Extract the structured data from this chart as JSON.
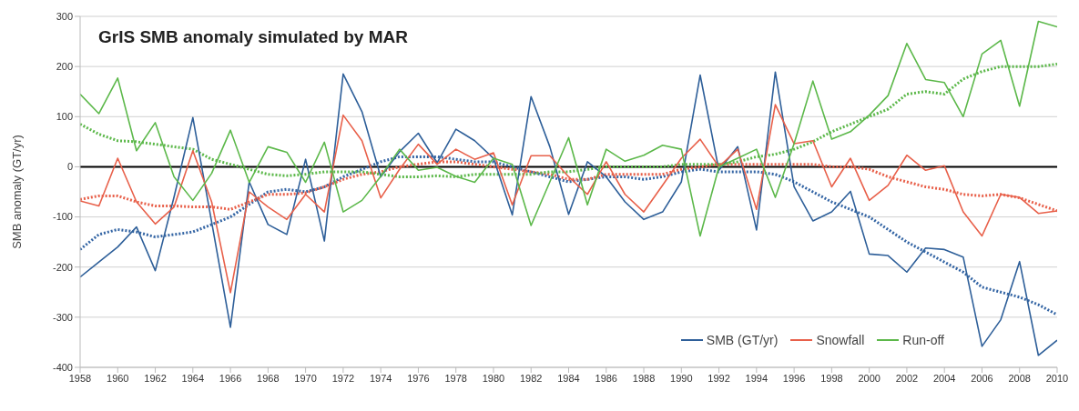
{
  "chart_data": {
    "type": "line",
    "title": "GrIS SMB anomaly simulated by MAR",
    "ylabel": "SMB anomaly (GT/yr)",
    "x": [
      1958,
      1959,
      1960,
      1961,
      1962,
      1963,
      1964,
      1965,
      1966,
      1967,
      1968,
      1969,
      1970,
      1971,
      1972,
      1973,
      1974,
      1975,
      1976,
      1977,
      1978,
      1979,
      1980,
      1981,
      1982,
      1983,
      1984,
      1985,
      1986,
      1987,
      1988,
      1989,
      1990,
      1991,
      1992,
      1993,
      1994,
      1995,
      1996,
      1997,
      1998,
      1999,
      2000,
      2001,
      2002,
      2003,
      2004,
      2005,
      2006,
      2007,
      2008,
      2009,
      2010
    ],
    "xlim": [
      1958,
      2010
    ],
    "xticks": [
      1958,
      1960,
      1962,
      1964,
      1966,
      1968,
      1970,
      1972,
      1974,
      1976,
      1978,
      1980,
      1982,
      1984,
      1986,
      1988,
      1990,
      1992,
      1994,
      1996,
      1998,
      2000,
      2002,
      2004,
      2006,
      2008,
      2010
    ],
    "ylim": [
      -400,
      300
    ],
    "yticks": [
      -400,
      -300,
      -200,
      -100,
      0,
      100,
      200,
      300
    ],
    "grid": "y",
    "legend": "bottom right",
    "marker": "none",
    "ref_lines": [
      {
        "axis": "y",
        "value": 0,
        "color": "#000000"
      }
    ],
    "series": [
      {
        "color": "#3465a4",
        "line_style": "dotted",
        "values": [
          -165,
          -135,
          -125,
          -130,
          -140,
          -135,
          -130,
          -115,
          -100,
          -75,
          -50,
          -45,
          -50,
          -40,
          -20,
          -5,
          10,
          20,
          20,
          20,
          15,
          10,
          10,
          0,
          -10,
          -20,
          -30,
          -25,
          -20,
          -20,
          -25,
          -20,
          -10,
          -5,
          -10,
          -10,
          -10,
          -15,
          -30,
          -50,
          -70,
          -85,
          -100,
          -125,
          -150,
          -170,
          -190,
          -210,
          -240,
          -250,
          -260,
          -275,
          -295
        ]
      },
      {
        "color": "#e8604a",
        "line_style": "dotted",
        "values": [
          -65,
          -58,
          -58,
          -70,
          -78,
          -78,
          -80,
          -80,
          -85,
          -70,
          -55,
          -55,
          -52,
          -40,
          -25,
          -15,
          -10,
          0,
          5,
          10,
          10,
          5,
          0,
          -5,
          -10,
          -15,
          -25,
          -25,
          -15,
          -15,
          -15,
          -15,
          -5,
          0,
          5,
          5,
          5,
          5,
          5,
          5,
          0,
          0,
          -5,
          -20,
          -30,
          -40,
          -45,
          -55,
          -58,
          -55,
          -62,
          -75,
          -88
        ]
      },
      {
        "color": "#5cb84a",
        "line_style": "dotted",
        "values": [
          85,
          65,
          52,
          50,
          45,
          40,
          35,
          15,
          5,
          -5,
          -15,
          -18,
          -15,
          -10,
          -10,
          -10,
          -15,
          -20,
          -20,
          -18,
          -20,
          -15,
          -15,
          -15,
          -15,
          -10,
          -10,
          -5,
          0,
          0,
          0,
          0,
          5,
          5,
          5,
          10,
          20,
          25,
          35,
          50,
          70,
          85,
          100,
          115,
          145,
          150,
          145,
          175,
          190,
          200,
          200,
          200,
          205
        ]
      },
      {
        "name": "SMB (GT/yr)",
        "color": "#2e5f99",
        "line_style": "solid",
        "values": [
          -220,
          -190,
          -160,
          -120,
          -207,
          -60,
          98,
          -110,
          -320,
          -30,
          -115,
          -135,
          15,
          -148,
          185,
          110,
          -20,
          30,
          67,
          8,
          75,
          52,
          17,
          -96,
          140,
          40,
          -95,
          10,
          -20,
          -70,
          -105,
          -90,
          -30,
          183,
          -7,
          40,
          -126,
          189,
          -40,
          -108,
          -90,
          -49,
          -174,
          -177,
          -210,
          -162,
          -165,
          -180,
          -358,
          -305,
          -189,
          -376,
          -346
        ]
      },
      {
        "name": "Snowfall",
        "color": "#e8604a",
        "line_style": "solid",
        "values": [
          -68,
          -78,
          17,
          -70,
          -114,
          -80,
          32,
          -70,
          -251,
          -50,
          -80,
          -105,
          -55,
          -90,
          103,
          52,
          -62,
          -5,
          45,
          5,
          35,
          15,
          28,
          -76,
          22,
          22,
          -20,
          -55,
          10,
          -55,
          -90,
          -37,
          17,
          55,
          0,
          35,
          -85,
          124,
          46,
          52,
          -40,
          17,
          -67,
          -37,
          23,
          -7,
          2,
          -90,
          -138,
          -55,
          -61,
          -93,
          -88
        ]
      },
      {
        "name": "Run-off",
        "color": "#5cb84a",
        "line_style": "solid",
        "values": [
          145,
          106,
          177,
          32,
          88,
          -20,
          -67,
          -13,
          73,
          -31,
          40,
          29,
          -31,
          49,
          -90,
          -67,
          -19,
          35,
          -7,
          -1,
          -19,
          -31,
          17,
          5,
          -117,
          -30,
          58,
          -76,
          35,
          11,
          23,
          43,
          35,
          -138,
          0,
          17,
          35,
          -61,
          46,
          171,
          55,
          70,
          103,
          142,
          246,
          174,
          168,
          100,
          225,
          252,
          121,
          290,
          279
        ]
      }
    ]
  }
}
